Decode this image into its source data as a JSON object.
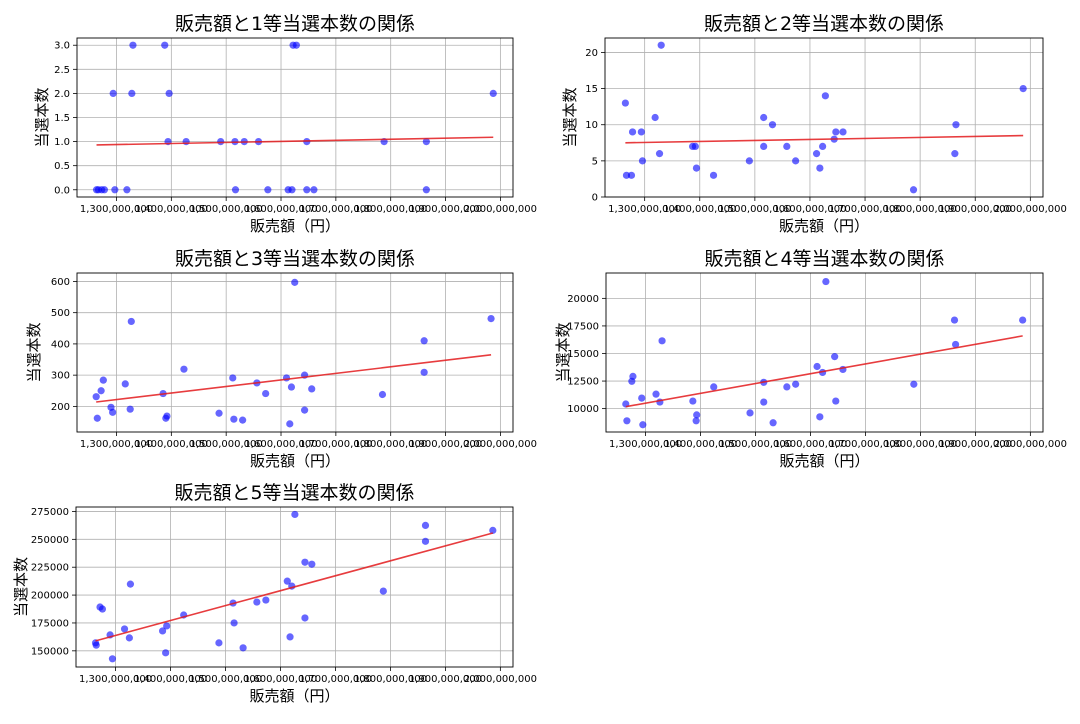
{
  "chart_data": [
    {
      "type": "scatter",
      "title": "販売額と1等当選本数の関係",
      "xlabel": "販売額（円）",
      "ylabel": "当選本数",
      "xlim": [
        1228000000,
        2023000000
      ],
      "ylim": [
        -0.15,
        3.15
      ],
      "xticks": [
        1300000000,
        1400000000,
        1500000000,
        1600000000,
        1700000000,
        1800000000,
        1900000000,
        2000000000
      ],
      "xtick_labels": [
        "1,300,000,000",
        "1,400,000,000",
        "1,500,000,000",
        "1,600,000,000",
        "1,700,000,000",
        "1,800,000,000",
        "1,900,000,000",
        "2,000,000,000"
      ],
      "yticks": [
        0,
        0.5,
        1,
        1.5,
        2,
        2.5,
        3
      ],
      "ytick_labels": [
        "0.0",
        "0.5",
        "1.0",
        "1.5",
        "2.0",
        "2.5",
        "3.0"
      ],
      "grid": true,
      "point_color": "#0000ff",
      "trend_color": "#e31a1c",
      "points": [
        [
          1263600000,
          0
        ],
        [
          1267000000,
          0
        ],
        [
          1273000000,
          0
        ],
        [
          1278000000,
          0
        ],
        [
          1294000000,
          2
        ],
        [
          1297000000,
          0
        ],
        [
          1319000000,
          0
        ],
        [
          1328000000,
          2
        ],
        [
          1330000000,
          3
        ],
        [
          1388000000,
          3
        ],
        [
          1394000000,
          1
        ],
        [
          1396000000,
          2
        ],
        [
          1427000000,
          1
        ],
        [
          1490000000,
          1
        ],
        [
          1516000000,
          1
        ],
        [
          1517000000,
          0
        ],
        [
          1533000000,
          1
        ],
        [
          1559000000,
          1
        ],
        [
          1576000000,
          0
        ],
        [
          1613000000,
          0
        ],
        [
          1620000000,
          0
        ],
        [
          1622000000,
          3
        ],
        [
          1628000000,
          3
        ],
        [
          1647000000,
          1
        ],
        [
          1647000000,
          0
        ],
        [
          1660000000,
          0
        ],
        [
          1788000000,
          1
        ],
        [
          1865000000,
          1
        ],
        [
          1865000000,
          0
        ],
        [
          1987000000,
          2
        ]
      ],
      "trend": [
        [
          1263600000,
          0.93
        ],
        [
          1987000000,
          1.09
        ]
      ]
    },
    {
      "type": "scatter",
      "title": "販売額と2等当選本数の関係",
      "xlabel": "販売額（円）",
      "ylabel": "当選本数",
      "xlim": [
        1228000000,
        2023000000
      ],
      "ylim": [
        0,
        22
      ],
      "xticks": [
        1300000000,
        1400000000,
        1500000000,
        1600000000,
        1700000000,
        1800000000,
        1900000000,
        2000000000
      ],
      "xtick_labels": [
        "1,300,000,000",
        "1,400,000,000",
        "1,500,000,000",
        "1,600,000,000",
        "1,700,000,000",
        "1,800,000,000",
        "1,900,000,000",
        "2,000,000,000"
      ],
      "yticks": [
        0,
        5,
        10,
        15,
        20
      ],
      "ytick_labels": [
        "0",
        "5",
        "10",
        "15",
        "20"
      ],
      "grid": true,
      "point_color": "#0000ff",
      "trend_color": "#e31a1c",
      "points": [
        [
          1265000000,
          13
        ],
        [
          1267000000,
          3
        ],
        [
          1276000000,
          3
        ],
        [
          1278000000,
          9
        ],
        [
          1294000000,
          9
        ],
        [
          1296000000,
          5
        ],
        [
          1319000000,
          11
        ],
        [
          1327000000,
          6
        ],
        [
          1330000000,
          21
        ],
        [
          1387000000,
          7
        ],
        [
          1392000000,
          7
        ],
        [
          1394000000,
          4
        ],
        [
          1425000000,
          3
        ],
        [
          1490000000,
          5
        ],
        [
          1516000000,
          11
        ],
        [
          1516000000,
          7
        ],
        [
          1532000000,
          10
        ],
        [
          1558000000,
          7
        ],
        [
          1574000000,
          5
        ],
        [
          1612000000,
          6
        ],
        [
          1618000000,
          4
        ],
        [
          1623000000,
          7
        ],
        [
          1628000000,
          14
        ],
        [
          1644000000,
          8
        ],
        [
          1647000000,
          9
        ],
        [
          1660000000,
          9
        ],
        [
          1788000000,
          1
        ],
        [
          1863000000,
          6
        ],
        [
          1865000000,
          10
        ],
        [
          1987000000,
          15
        ]
      ],
      "trend": [
        [
          1265000000,
          7.5
        ],
        [
          1987000000,
          8.5
        ]
      ]
    },
    {
      "type": "scatter",
      "title": "販売額と3等当選本数の関係",
      "xlabel": "販売額（円）",
      "ylabel": "当選本数",
      "xlim": [
        1228000000,
        2023000000
      ],
      "ylim": [
        118,
        627
      ],
      "xticks": [
        1300000000,
        1400000000,
        1500000000,
        1600000000,
        1700000000,
        1800000000,
        1900000000,
        2000000000
      ],
      "xtick_labels": [
        "1,300,000,000",
        "1,400,000,000",
        "1,500,000,000",
        "1,600,000,000",
        "1,700,000,000",
        "1,800,000,000",
        "1,900,000,000",
        "2,000,000,000"
      ],
      "yticks": [
        200,
        300,
        400,
        500,
        600
      ],
      "ytick_labels": [
        "200",
        "300",
        "400",
        "500",
        "600"
      ],
      "grid": true,
      "point_color": "#0000ff",
      "trend_color": "#e31a1c",
      "points": [
        [
          1263000000,
          231
        ],
        [
          1265000000,
          162
        ],
        [
          1272000000,
          250
        ],
        [
          1276000000,
          284
        ],
        [
          1290000000,
          197
        ],
        [
          1293000000,
          181
        ],
        [
          1316000000,
          272
        ],
        [
          1325000000,
          191
        ],
        [
          1327000000,
          472
        ],
        [
          1385000000,
          241
        ],
        [
          1390000000,
          162
        ],
        [
          1392000000,
          169
        ],
        [
          1423000000,
          319
        ],
        [
          1487000000,
          178
        ],
        [
          1512000000,
          291
        ],
        [
          1514000000,
          159
        ],
        [
          1530000000,
          156
        ],
        [
          1556000000,
          275
        ],
        [
          1572000000,
          241
        ],
        [
          1610000000,
          291
        ],
        [
          1616000000,
          144
        ],
        [
          1619000000,
          262
        ],
        [
          1625000000,
          597
        ],
        [
          1643000000,
          300
        ],
        [
          1643000000,
          188
        ],
        [
          1656000000,
          256
        ],
        [
          1785000000,
          238
        ],
        [
          1861000000,
          309
        ],
        [
          1861000000,
          410
        ],
        [
          1983000000,
          481
        ]
      ],
      "trend": [
        [
          1263000000,
          214
        ],
        [
          1983000000,
          365
        ]
      ]
    },
    {
      "type": "scatter",
      "title": "販売額と4等当選本数の関係",
      "xlabel": "販売額（円）",
      "ylabel": "当選本数",
      "xlim": [
        1228000000,
        2023000000
      ],
      "ylim": [
        7880,
        22300
      ],
      "xticks": [
        1300000000,
        1400000000,
        1500000000,
        1600000000,
        1700000000,
        1800000000,
        1900000000,
        2000000000
      ],
      "xtick_labels": [
        "1,300,000,000",
        "1,400,000,000",
        "1,500,000,000",
        "1,600,000,000",
        "1,700,000,000",
        "1,800,000,000",
        "1,900,000,000",
        "2,000,000,000"
      ],
      "yticks": [
        10000,
        12500,
        15000,
        17500,
        20000
      ],
      "ytick_labels": [
        "10000",
        "12500",
        "15000",
        "17500",
        "20000"
      ],
      "grid": true,
      "point_color": "#0000ff",
      "trend_color": "#e31a1c",
      "points": [
        [
          1264000000,
          10418
        ],
        [
          1266000000,
          8896
        ],
        [
          1275000000,
          12478
        ],
        [
          1277000000,
          12925
        ],
        [
          1293000000,
          10955
        ],
        [
          1295000000,
          8537
        ],
        [
          1319000000,
          11313
        ],
        [
          1326000000,
          10597
        ],
        [
          1330000000,
          16149
        ],
        [
          1386000000,
          10687
        ],
        [
          1392000000,
          8896
        ],
        [
          1393000000,
          9433
        ],
        [
          1424000000,
          11970
        ],
        [
          1490000000,
          9612
        ],
        [
          1515000000,
          12388
        ],
        [
          1515000000,
          10597
        ],
        [
          1532000000,
          8716
        ],
        [
          1557000000,
          11970
        ],
        [
          1573000000,
          12209
        ],
        [
          1612000000,
          13821
        ],
        [
          1617000000,
          9254
        ],
        [
          1622000000,
          13284
        ],
        [
          1628000000,
          21522
        ],
        [
          1644000000,
          14716
        ],
        [
          1646000000,
          10687
        ],
        [
          1659000000,
          13552
        ],
        [
          1788000000,
          12209
        ],
        [
          1862000000,
          18030
        ],
        [
          1864000000,
          15821
        ],
        [
          1986000000,
          18030
        ]
      ],
      "trend": [
        [
          1264000000,
          10179
        ],
        [
          1986000000,
          16597
        ]
      ]
    },
    {
      "type": "scatter",
      "title": "販売額と5等当選本数の関係",
      "xlabel": "販売額（円）",
      "ylabel": "当選本数",
      "xlim": [
        1228000000,
        2023000000
      ],
      "ylim": [
        135500,
        279000
      ],
      "xticks": [
        1300000000,
        1400000000,
        1500000000,
        1600000000,
        1700000000,
        1800000000,
        1900000000,
        2000000000
      ],
      "xtick_labels": [
        "1,300,000,000",
        "1,400,000,000",
        "1,500,000,000",
        "1,600,000,000",
        "1,700,000,000",
        "1,800,000,000",
        "1,900,000,000",
        "2,000,000,000"
      ],
      "yticks": [
        150000,
        175000,
        200000,
        225000,
        250000,
        275000
      ],
      "ytick_labels": [
        "150000",
        "175000",
        "200000",
        "225000",
        "250000",
        "275000"
      ],
      "grid": true,
      "point_color": "#0000ff",
      "trend_color": "#e31a1c",
      "points": [
        [
          1263500000,
          157143
        ],
        [
          1264800000,
          155060
        ],
        [
          1271700000,
          189283
        ],
        [
          1276100000,
          187500
        ],
        [
          1290000000,
          164285
        ],
        [
          1294300000,
          142857
        ],
        [
          1316300000,
          169642
        ],
        [
          1325100000,
          161607
        ],
        [
          1327000000,
          209821
        ],
        [
          1385500000,
          167857
        ],
        [
          1391100000,
          148214
        ],
        [
          1393000000,
          172321
        ],
        [
          1423900000,
          182143
        ],
        [
          1488000000,
          157143
        ],
        [
          1513700000,
          192857
        ],
        [
          1515600000,
          175000
        ],
        [
          1532000000,
          152679
        ],
        [
          1557000000,
          193750
        ],
        [
          1573400000,
          195535
        ],
        [
          1612400000,
          212500
        ],
        [
          1617400000,
          162500
        ],
        [
          1620600000,
          208035
        ],
        [
          1626200000,
          272321
        ],
        [
          1644500000,
          229464
        ],
        [
          1644500000,
          179464
        ],
        [
          1657000000,
          227678
        ],
        [
          1787100000,
          203571
        ],
        [
          1863800000,
          262500
        ],
        [
          1863800000,
          248214
        ],
        [
          1986300000,
          258035
        ]
      ],
      "trend": [
        [
          1263500000,
          158928
        ],
        [
          1986300000,
          255650
        ]
      ]
    }
  ]
}
